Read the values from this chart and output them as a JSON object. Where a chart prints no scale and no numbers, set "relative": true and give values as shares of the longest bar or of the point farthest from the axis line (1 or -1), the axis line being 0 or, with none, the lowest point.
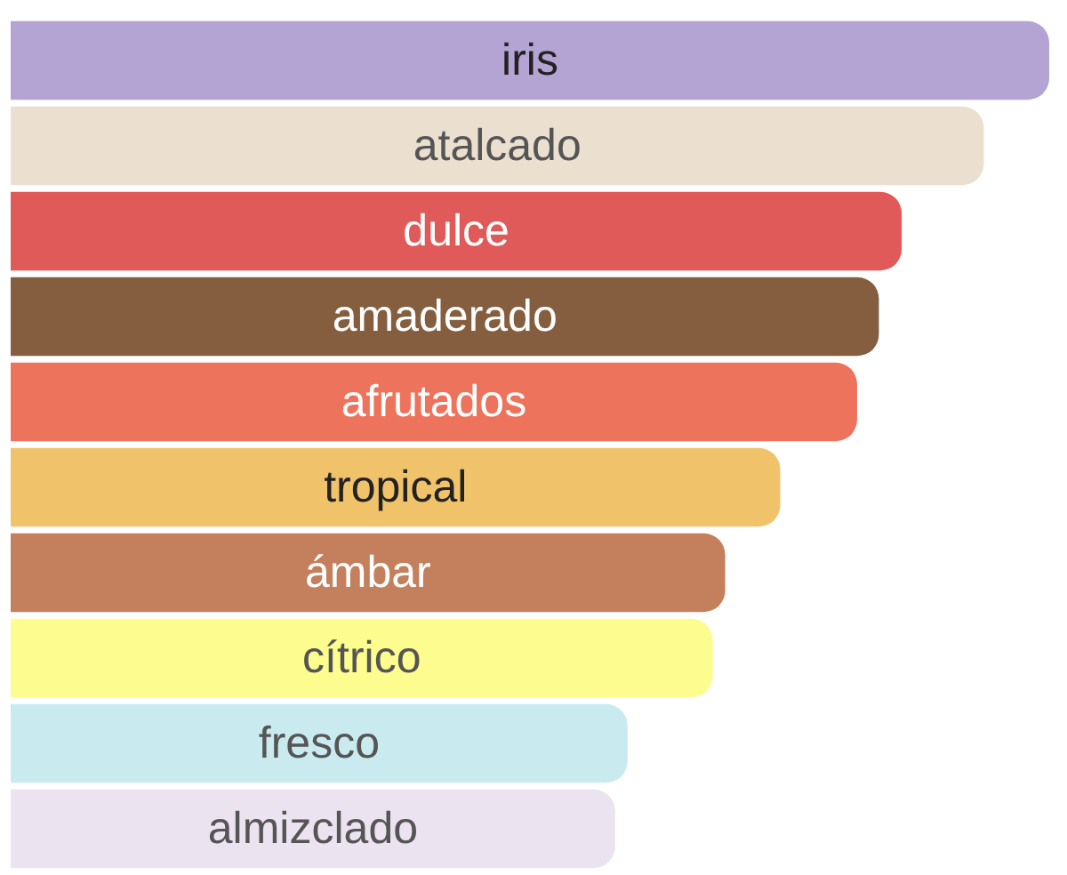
{
  "chart_data": {
    "type": "bar",
    "orientation": "horizontal",
    "relative": true,
    "categories": [
      "iris",
      "atalcado",
      "dulce",
      "amaderado",
      "afrutados",
      "tropical",
      "ámbar",
      "cítrico",
      "fresco",
      "almizclado"
    ],
    "values": [
      1,
      0.937,
      0.858,
      0.836,
      0.815,
      0.741,
      0.688,
      0.676,
      0.594,
      0.582
    ],
    "colors": [
      "#b3a4d3",
      "#ebdfd0",
      "#e05a5a",
      "#845e3e",
      "#ee735c",
      "#f0c36a",
      "#c47f5c",
      "#fdfc8e",
      "#c9ebf0",
      "#ebe3f0"
    ]
  }
}
